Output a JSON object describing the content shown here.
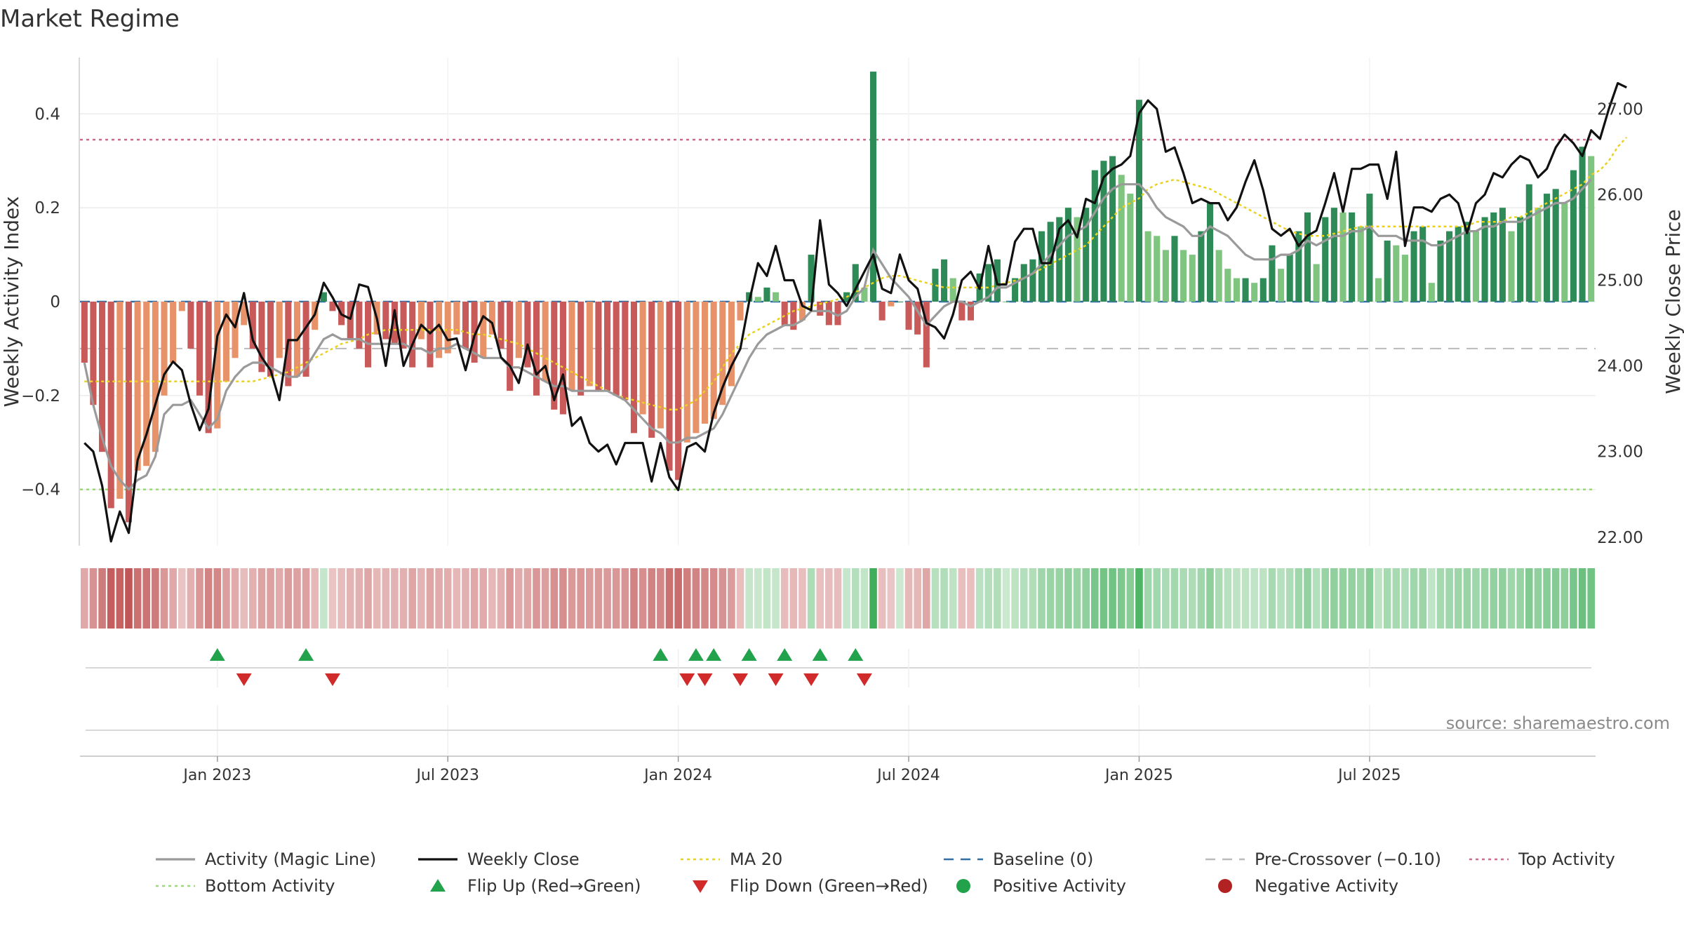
{
  "title": "Market Regime",
  "source": "source: sharemaestro.com",
  "colors": {
    "pos_strong": "#2e8b57",
    "pos_weak": "#7fc47f",
    "neg_strong": "#c95a5a",
    "neg_weak": "#e8926a",
    "magic_line": "#9a9a9a",
    "close_line": "#111111",
    "ma20": "#e8d21f",
    "baseline": "#2f6fa3",
    "pre_crossover": "#bbbbbb",
    "top_activity": "#d06a8c",
    "bottom_activity": "#9ad97a",
    "flip_up": "#22a24a",
    "flip_down": "#d02a2a",
    "positive_activity": "#22a24a",
    "negative_activity": "#b22222"
  },
  "chart_data": {
    "type": "bar",
    "x_ticks": [
      "Jan 2023",
      "Jul 2023",
      "Jan 2024",
      "Jul 2024",
      "Jan 2025",
      "Jul 2025"
    ],
    "x_tick_positions": [
      15,
      41,
      67,
      93,
      119,
      145
    ],
    "left_axis": {
      "label": "Weekly Activity Index",
      "ylim": [
        -0.52,
        0.52
      ],
      "ticks": [
        "0.4",
        "0.2",
        "0",
        "−0.2",
        "−0.4"
      ],
      "tick_values": [
        0.4,
        0.2,
        0,
        -0.2,
        -0.4
      ]
    },
    "right_axis": {
      "label": "Weekly Close Price",
      "ylim": [
        21.9,
        27.6
      ],
      "ticks": [
        "27.00",
        "26.00",
        "25.00",
        "24.00",
        "23.00",
        "22.00"
      ],
      "tick_values": [
        27,
        26,
        25,
        24,
        23,
        22
      ]
    },
    "reference_lines": {
      "baseline": 0,
      "pre_crossover": -0.1,
      "top_activity": 0.345,
      "bottom_activity": -0.4
    },
    "activity": [
      -0.13,
      -0.22,
      -0.32,
      -0.44,
      -0.42,
      -0.47,
      -0.36,
      -0.35,
      -0.32,
      -0.2,
      -0.13,
      -0.02,
      -0.1,
      -0.2,
      -0.28,
      -0.27,
      -0.17,
      -0.12,
      -0.05,
      -0.1,
      -0.15,
      -0.16,
      -0.12,
      -0.18,
      -0.16,
      -0.16,
      -0.06,
      0.02,
      -0.02,
      -0.05,
      -0.08,
      -0.1,
      -0.14,
      -0.07,
      -0.08,
      -0.09,
      -0.1,
      -0.14,
      -0.08,
      -0.14,
      -0.12,
      -0.11,
      -0.07,
      -0.1,
      -0.13,
      -0.12,
      -0.07,
      -0.1,
      -0.19,
      -0.12,
      -0.14,
      -0.2,
      -0.17,
      -0.23,
      -0.24,
      -0.19,
      -0.2,
      -0.18,
      -0.19,
      -0.19,
      -0.2,
      -0.21,
      -0.28,
      -0.24,
      -0.29,
      -0.27,
      -0.36,
      -0.38,
      -0.3,
      -0.28,
      -0.26,
      -0.25,
      -0.22,
      -0.18,
      -0.04,
      0.02,
      0.01,
      0.03,
      0.02,
      -0.05,
      -0.06,
      -0.04,
      0.1,
      -0.03,
      -0.05,
      -0.05,
      0.02,
      0.08,
      0.03,
      0.49,
      -0.04,
      -0.01,
      0.0,
      -0.06,
      -0.07,
      -0.14,
      0.07,
      0.09,
      0.05,
      -0.04,
      -0.04,
      0.06,
      0.08,
      0.09,
      0.0,
      0.05,
      0.08,
      0.09,
      0.15,
      0.17,
      0.18,
      0.2,
      0.18,
      0.2,
      0.28,
      0.3,
      0.31,
      0.27,
      0.23,
      0.43,
      0.15,
      0.14,
      0.11,
      0.14,
      0.11,
      0.1,
      0.15,
      0.21,
      0.11,
      0.07,
      0.05,
      0.05,
      0.04,
      0.05,
      0.12,
      0.07,
      0.1,
      0.15,
      0.19,
      0.08,
      0.18,
      0.2,
      0.19,
      0.19,
      0.16,
      0.23,
      0.05,
      0.13,
      0.12,
      0.1,
      0.15,
      0.16,
      0.04,
      0.13,
      0.15,
      0.16,
      0.17,
      0.15,
      0.18,
      0.19,
      0.2,
      0.15,
      0.18,
      0.25,
      0.2,
      0.23,
      0.24,
      0.21,
      0.28,
      0.33,
      0.31
    ],
    "magic_line": [
      -0.13,
      -0.22,
      -0.29,
      -0.35,
      -0.38,
      -0.4,
      -0.38,
      -0.37,
      -0.33,
      -0.24,
      -0.22,
      -0.22,
      -0.21,
      -0.24,
      -0.27,
      -0.25,
      -0.19,
      -0.16,
      -0.14,
      -0.13,
      -0.13,
      -0.14,
      -0.15,
      -0.16,
      -0.16,
      -0.14,
      -0.11,
      -0.08,
      -0.07,
      -0.08,
      -0.08,
      -0.08,
      -0.09,
      -0.09,
      -0.09,
      -0.09,
      -0.09,
      -0.1,
      -0.1,
      -0.11,
      -0.1,
      -0.1,
      -0.09,
      -0.1,
      -0.11,
      -0.12,
      -0.12,
      -0.12,
      -0.14,
      -0.14,
      -0.15,
      -0.16,
      -0.17,
      -0.18,
      -0.18,
      -0.19,
      -0.19,
      -0.19,
      -0.19,
      -0.19,
      -0.2,
      -0.21,
      -0.23,
      -0.25,
      -0.27,
      -0.28,
      -0.3,
      -0.3,
      -0.29,
      -0.29,
      -0.28,
      -0.27,
      -0.24,
      -0.2,
      -0.16,
      -0.12,
      -0.09,
      -0.07,
      -0.06,
      -0.05,
      -0.05,
      -0.04,
      -0.02,
      -0.02,
      -0.02,
      -0.03,
      -0.02,
      0.01,
      0.03,
      0.11,
      0.08,
      0.05,
      0.03,
      0.01,
      -0.02,
      -0.05,
      -0.03,
      -0.01,
      0.0,
      0.0,
      -0.01,
      0.0,
      0.01,
      0.03,
      0.03,
      0.04,
      0.05,
      0.06,
      0.08,
      0.1,
      0.12,
      0.14,
      0.15,
      0.16,
      0.19,
      0.22,
      0.24,
      0.25,
      0.25,
      0.25,
      0.23,
      0.2,
      0.18,
      0.17,
      0.16,
      0.14,
      0.14,
      0.16,
      0.15,
      0.14,
      0.12,
      0.1,
      0.09,
      0.09,
      0.09,
      0.1,
      0.1,
      0.11,
      0.13,
      0.12,
      0.13,
      0.14,
      0.14,
      0.15,
      0.15,
      0.16,
      0.14,
      0.14,
      0.14,
      0.13,
      0.13,
      0.13,
      0.12,
      0.12,
      0.13,
      0.14,
      0.15,
      0.15,
      0.16,
      0.16,
      0.17,
      0.17,
      0.17,
      0.18,
      0.19,
      0.2,
      0.21,
      0.21,
      0.22,
      0.24,
      0.26
    ],
    "weekly_close": [
      23.1,
      23.0,
      22.6,
      21.95,
      22.3,
      22.05,
      22.9,
      23.2,
      23.55,
      23.9,
      24.05,
      23.95,
      23.55,
      23.25,
      23.5,
      24.35,
      24.6,
      24.45,
      24.85,
      24.3,
      24.1,
      23.95,
      23.6,
      24.3,
      24.3,
      24.45,
      24.6,
      24.97,
      24.8,
      24.6,
      24.55,
      24.95,
      24.92,
      24.55,
      24.0,
      24.65,
      24.0,
      24.25,
      24.48,
      24.38,
      24.48,
      24.3,
      24.32,
      23.95,
      24.35,
      24.58,
      24.5,
      24.1,
      24.0,
      23.8,
      24.25,
      23.9,
      24.0,
      23.6,
      23.9,
      23.3,
      23.4,
      23.1,
      23.0,
      23.08,
      22.85,
      23.1,
      23.1,
      23.1,
      22.65,
      23.1,
      22.7,
      22.55,
      23.05,
      23.1,
      23.0,
      23.45,
      23.75,
      24.0,
      24.2,
      24.75,
      25.2,
      25.05,
      25.4,
      25.0,
      25.0,
      24.7,
      24.65,
      25.7,
      24.95,
      24.85,
      24.7,
      24.9,
      25.1,
      25.3,
      24.9,
      24.85,
      25.3,
      25.0,
      24.9,
      24.5,
      24.45,
      24.32,
      24.6,
      25.0,
      25.1,
      24.9,
      25.4,
      24.95,
      24.95,
      25.45,
      25.6,
      25.6,
      25.2,
      25.2,
      25.6,
      25.7,
      25.5,
      25.95,
      25.9,
      26.2,
      26.3,
      26.35,
      26.45,
      26.95,
      27.1,
      27.0,
      26.5,
      26.55,
      26.25,
      25.9,
      25.95,
      25.9,
      25.9,
      25.7,
      25.85,
      26.15,
      26.4,
      26.05,
      25.6,
      25.52,
      25.6,
      25.4,
      25.52,
      25.58,
      25.9,
      26.25,
      25.8,
      26.3,
      26.3,
      26.35,
      26.35,
      25.95,
      26.5,
      25.4,
      25.85,
      25.85,
      25.8,
      25.95,
      26.0,
      25.9,
      25.55,
      25.9,
      26.0,
      26.25,
      26.2,
      26.35,
      26.45,
      26.4,
      26.2,
      26.3,
      26.55,
      26.7,
      26.6,
      26.45,
      26.75,
      26.65,
      27.0,
      27.3,
      27.25
    ],
    "ma20": [
      -0.17,
      -0.17,
      -0.17,
      -0.17,
      -0.17,
      -0.17,
      -0.17,
      -0.17,
      -0.17,
      -0.17,
      -0.17,
      -0.17,
      -0.17,
      -0.17,
      -0.17,
      -0.17,
      -0.17,
      -0.17,
      -0.17,
      -0.17,
      -0.165,
      -0.16,
      -0.155,
      -0.15,
      -0.14,
      -0.13,
      -0.12,
      -0.11,
      -0.1,
      -0.09,
      -0.085,
      -0.08,
      -0.07,
      -0.065,
      -0.06,
      -0.06,
      -0.06,
      -0.06,
      -0.06,
      -0.06,
      -0.06,
      -0.06,
      -0.06,
      -0.065,
      -0.07,
      -0.07,
      -0.075,
      -0.08,
      -0.085,
      -0.09,
      -0.1,
      -0.11,
      -0.12,
      -0.13,
      -0.14,
      -0.15,
      -0.16,
      -0.17,
      -0.18,
      -0.19,
      -0.2,
      -0.205,
      -0.21,
      -0.215,
      -0.22,
      -0.225,
      -0.23,
      -0.23,
      -0.22,
      -0.21,
      -0.19,
      -0.17,
      -0.14,
      -0.11,
      -0.09,
      -0.07,
      -0.06,
      -0.05,
      -0.04,
      -0.03,
      -0.02,
      -0.015,
      -0.01,
      -0.005,
      0.0,
      0.005,
      0.01,
      0.02,
      0.03,
      0.04,
      0.05,
      0.055,
      0.055,
      0.05,
      0.045,
      0.04,
      0.035,
      0.03,
      0.03,
      0.03,
      0.03,
      0.03,
      0.03,
      0.035,
      0.04,
      0.045,
      0.05,
      0.06,
      0.07,
      0.08,
      0.09,
      0.1,
      0.11,
      0.12,
      0.14,
      0.16,
      0.18,
      0.2,
      0.21,
      0.22,
      0.24,
      0.25,
      0.255,
      0.26,
      0.255,
      0.25,
      0.245,
      0.24,
      0.23,
      0.22,
      0.21,
      0.2,
      0.19,
      0.18,
      0.17,
      0.16,
      0.15,
      0.145,
      0.14,
      0.14,
      0.14,
      0.145,
      0.15,
      0.155,
      0.16,
      0.16,
      0.16,
      0.16,
      0.16,
      0.16,
      0.16,
      0.16,
      0.16,
      0.16,
      0.16,
      0.16,
      0.16,
      0.17,
      0.17,
      0.17,
      0.17,
      0.18,
      0.18,
      0.19,
      0.2,
      0.21,
      0.22,
      0.23,
      0.24,
      0.25,
      0.27,
      0.28,
      0.3,
      0.33,
      0.35
    ],
    "flip_up_weeks": [
      7,
      12,
      32,
      34,
      35,
      37,
      39,
      41,
      43
    ],
    "flip_down_weeks": [
      8,
      13,
      33,
      34,
      36,
      38,
      40,
      43
    ],
    "legend": [
      {
        "label": "Activity (Magic Line)",
        "symbol": "line",
        "color": "#9a9a9a"
      },
      {
        "label": "Weekly Close",
        "symbol": "line",
        "color": "#111111"
      },
      {
        "label": "MA 20",
        "symbol": "dotted",
        "color": "#e8d21f"
      },
      {
        "label": "Baseline (0)",
        "symbol": "dashed",
        "color": "#2f6fa3"
      },
      {
        "label": "Pre-Crossover (−0.10)",
        "symbol": "dashed",
        "color": "#bbbbbb"
      },
      {
        "label": "Top Activity",
        "symbol": "dotted",
        "color": "#d06a8c"
      },
      {
        "label": "Bottom Activity",
        "symbol": "dotted",
        "color": "#9ad97a"
      },
      {
        "label": "Flip Up (Red→Green)",
        "symbol": "triangle-up",
        "color": "#22a24a"
      },
      {
        "label": "Flip Down (Green→Red)",
        "symbol": "triangle-down",
        "color": "#d02a2a"
      },
      {
        "label": "Positive Activity",
        "symbol": "circle",
        "color": "#22a24a"
      },
      {
        "label": "Negative Activity",
        "symbol": "circle",
        "color": "#b22222"
      }
    ]
  }
}
